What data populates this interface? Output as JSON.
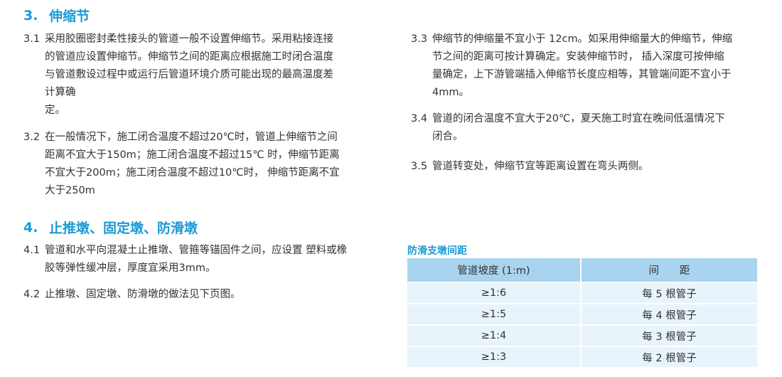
{
  "section3": {
    "num": "3.",
    "title": "伸缩节",
    "color": "#1a9ad6",
    "items": [
      {
        "num": "3.1",
        "lines": [
          "采用胶圈密封柔性接头的管道一般不设置伸缩节。采用粘接连接",
          "的管道应设置伸缩节。伸缩节之间的距离应根据施工时闭合温度",
          "与管道敷设过程中或运行后管道环境介质可能出现的最高温度差",
          "计算确",
          "定。"
        ]
      },
      {
        "num": "3.2",
        "lines": [
          "在一般情况下，施工闭合温度不超过20℃时，管道上伸缩节之间",
          "距离不宜大于150m；施工闭合温度不超过15℃ 时，伸缩节距离",
          "不宜大于200m；施工闭合温度不超过10℃时， 伸缩节距离不宜",
          "大于250m"
        ]
      },
      {
        "num": "3.3",
        "lines": [
          "伸缩节的伸缩量不宜小于 12cm。如采用伸缩量大的伸缩节，伸缩",
          "节之间的距离可按计算确定。安装伸缩节时， 插入深度可按伸缩",
          "量确定，上下游管端插入伸缩节长度应相等，其管端间距不宜小于",
          "4mm。"
        ]
      },
      {
        "num": "3.4",
        "lines": [
          "管道的闭合温度不宜大于20℃，夏天施工时宜在晚间低温情况下",
          "闭合。"
        ]
      },
      {
        "num": "3.5",
        "lines": [
          "管道转变处，伸缩节宜等距离设置在弯头两侧。"
        ]
      }
    ]
  },
  "section4": {
    "num": "4.",
    "title": "止推墩、固定墩、防滑墩",
    "items": [
      {
        "num": "4.1",
        "lines": [
          "管道和水平向混凝土止推墩、管箍等锚固件之间，应设置 塑料或橡",
          "胶等弹性缓冲层，厚度宜采用3mm。"
        ]
      },
      {
        "num": "4.2",
        "lines": [
          "止推墩、固定墩、防滑墩的做法见下页图。"
        ]
      }
    ]
  },
  "table": {
    "title": "防滑支墩间距",
    "headers": [
      "管道坡度 (1:m)",
      "间　　距"
    ],
    "rows": [
      [
        "≥1:6",
        "每 5 根管子"
      ],
      [
        "≥1:5",
        "每 4 根管子"
      ],
      [
        "≥1:4",
        "每 3 根管子"
      ],
      [
        "≥1:3",
        "每 2 根管子"
      ]
    ],
    "header_color": "#a9d4ef",
    "row_color": "#e8f4fb"
  }
}
